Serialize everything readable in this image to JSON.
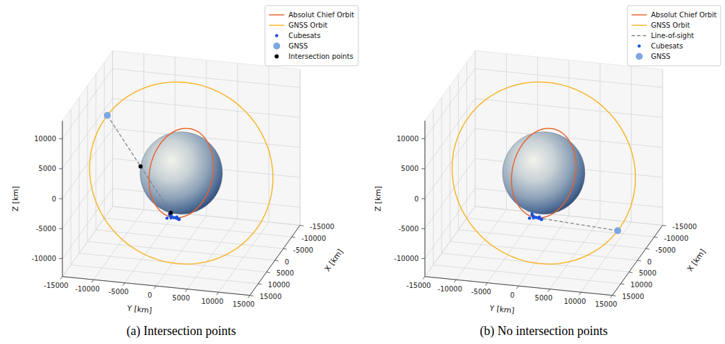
{
  "chart_data": [
    {
      "type": "scatter3d",
      "title": "(a) Intersection points",
      "xlabel": "X [km]",
      "ylabel": "Y [km]",
      "zlabel": "Z [km]",
      "xlim": [
        -15000,
        15000
      ],
      "ylim": [
        -15000,
        15000
      ],
      "zlim": [
        -13000,
        13000
      ],
      "xticks": [
        -15000,
        -10000,
        -5000,
        0,
        5000,
        10000,
        15000
      ],
      "yticks": [
        -15000,
        -10000,
        -5000,
        0,
        5000,
        10000,
        15000
      ],
      "zticks": [
        -10000,
        -5000,
        0,
        5000,
        10000
      ],
      "grid": true,
      "legend": "upper right",
      "earth_radius": 6371,
      "series": [
        {
          "name": "Absolut Chief Orbit",
          "type": "orbit",
          "color": "#e8622c",
          "radius": 7000,
          "inclination": 97,
          "raan": -30
        },
        {
          "name": "GNSS Orbit",
          "type": "orbit",
          "color": "#f7b526",
          "radius": 14500,
          "inclination": 55,
          "raan": 120
        },
        {
          "type": "line",
          "line_style": "dashed",
          "color": "#808080",
          "x": [
            34,
            2474
          ],
          "y": [
            -11820,
            -503
          ],
          "z": [
            8399,
            -6529
          ]
        },
        {
          "name": "Cubesats",
          "type": "scatter",
          "marker": "point",
          "color": "#1d4ee0",
          "x": [
            2474,
            3200,
            1800,
            3000,
            2000,
            3500,
            1500,
            2900,
            2200,
            3300
          ],
          "y": [
            -503,
            100,
            -1100,
            -1000,
            200,
            -700,
            -300,
            400,
            -1300,
            -1400
          ],
          "z": [
            -6529,
            -6300,
            -6700,
            -6000,
            -6900,
            -6200,
            -6800,
            -6600,
            -6100,
            -6400
          ]
        },
        {
          "name": "GNSS",
          "type": "scatter",
          "marker": "circle",
          "color": "#7ea6e0",
          "x": [
            34
          ],
          "y": [
            -11820
          ],
          "z": [
            8399
          ]
        },
        {
          "name": "Intersection points",
          "type": "scatter",
          "marker": "dot",
          "color": "#000000",
          "x": [
            2359,
            1251
          ],
          "y": [
            -1035,
            -6174
          ],
          "z": [
            -5827,
            951
          ]
        }
      ]
    },
    {
      "type": "scatter3d",
      "title": "(b) No intersection points",
      "xlabel": "X [km]",
      "ylabel": "Y [km]",
      "zlabel": "Z [km]",
      "xlim": [
        -15000,
        15000
      ],
      "ylim": [
        -15000,
        15000
      ],
      "zlim": [
        -13000,
        13000
      ],
      "xticks": [
        -15000,
        -10000,
        -5000,
        0,
        5000,
        10000,
        15000
      ],
      "yticks": [
        -15000,
        -10000,
        -5000,
        0,
        5000,
        10000,
        15000
      ],
      "zticks": [
        -10000,
        -5000,
        0,
        5000,
        10000
      ],
      "grid": true,
      "legend": "upper right",
      "earth_radius": 6371,
      "series": [
        {
          "name": "Absolut Chief Orbit",
          "type": "orbit",
          "color": "#e8622c",
          "radius": 7000,
          "inclination": 97,
          "raan": -30
        },
        {
          "name": "GNSS Orbit",
          "type": "orbit",
          "color": "#f7b526",
          "radius": 14500,
          "inclination": 55,
          "raan": 120
        },
        {
          "name": "Line-of-sight",
          "type": "line",
          "line_style": "dashed",
          "color": "#808080",
          "x": [
            -34,
            2474
          ],
          "y": [
            11820,
            -503
          ],
          "z": [
            -8399,
            -6529
          ]
        },
        {
          "name": "Cubesats",
          "type": "scatter",
          "marker": "point",
          "color": "#1d4ee0",
          "x": [
            2474,
            3200,
            1800,
            3000,
            2000,
            3500,
            1500,
            2900,
            2200,
            3300
          ],
          "y": [
            -503,
            100,
            -1100,
            -1000,
            200,
            -700,
            -300,
            400,
            -1300,
            -1400
          ],
          "z": [
            -6529,
            -6300,
            -6700,
            -6000,
            -6900,
            -6200,
            -6800,
            -6600,
            -6100,
            -6400
          ]
        },
        {
          "name": "GNSS",
          "type": "scatter",
          "marker": "circle",
          "color": "#7ea6e0",
          "x": [
            -34
          ],
          "y": [
            11820
          ],
          "z": [
            -8399
          ]
        }
      ]
    }
  ]
}
